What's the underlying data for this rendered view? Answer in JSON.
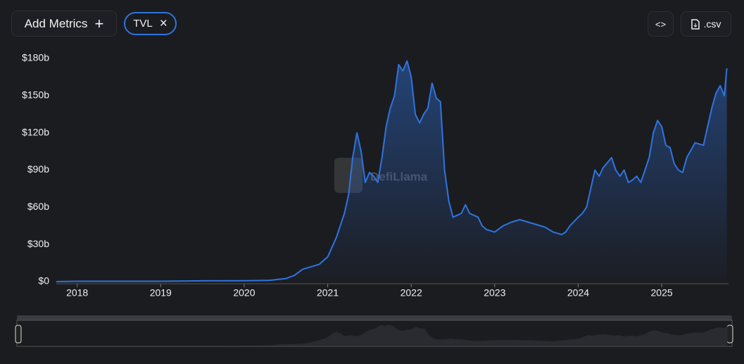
{
  "toolbar": {
    "add_metrics": "Add Metrics",
    "add_icon": "+",
    "remove_icon": "×",
    "embed": "<>",
    "csv": ".csv"
  },
  "watermark": "DefiLlama",
  "chart_data": {
    "type": "area",
    "xlim": [
      2017.75,
      2025.8
    ],
    "xticks": [
      2018,
      2019,
      2020,
      2021,
      2022,
      2023,
      2024,
      2025
    ],
    "ylim": [
      0,
      180
    ],
    "yticks": [
      {
        "value": 0,
        "label": "$0"
      },
      {
        "value": 30,
        "label": "$30b"
      },
      {
        "value": 60,
        "label": "$60b"
      },
      {
        "value": 90,
        "label": "$90b"
      },
      {
        "value": 120,
        "label": "$120b"
      },
      {
        "value": 150,
        "label": "$150b"
      },
      {
        "value": 180,
        "label": "$180b"
      }
    ],
    "grid": false,
    "series": [
      {
        "name": "TVL",
        "color": "#2f74e0",
        "x": [
          2017.75,
          2018,
          2019,
          2019.5,
          2020,
          2020.3,
          2020.5,
          2020.6,
          2020.7,
          2020.8,
          2020.9,
          2021.0,
          2021.1,
          2021.15,
          2021.2,
          2021.25,
          2021.3,
          2021.35,
          2021.4,
          2021.45,
          2021.5,
          2021.55,
          2021.6,
          2021.65,
          2021.7,
          2021.75,
          2021.8,
          2021.85,
          2021.9,
          2021.95,
          2022.0,
          2022.05,
          2022.1,
          2022.15,
          2022.2,
          2022.25,
          2022.3,
          2022.35,
          2022.4,
          2022.45,
          2022.5,
          2022.6,
          2022.65,
          2022.7,
          2022.8,
          2022.85,
          2022.9,
          2023.0,
          2023.1,
          2023.2,
          2023.3,
          2023.4,
          2023.5,
          2023.6,
          2023.7,
          2023.8,
          2023.85,
          2023.9,
          2024.0,
          2024.05,
          2024.1,
          2024.15,
          2024.2,
          2024.25,
          2024.3,
          2024.4,
          2024.45,
          2024.5,
          2024.55,
          2024.6,
          2024.65,
          2024.7,
          2024.75,
          2024.8,
          2024.85,
          2024.9,
          2024.95,
          2025.0,
          2025.05,
          2025.1,
          2025.15,
          2025.2,
          2025.25,
          2025.3,
          2025.4,
          2025.5,
          2025.55,
          2025.6,
          2025.65,
          2025.7,
          2025.75,
          2025.78
        ],
        "values": [
          0,
          0.3,
          0.3,
          0.6,
          0.7,
          1,
          2.5,
          5,
          10,
          12,
          14,
          20,
          35,
          45,
          55,
          70,
          100,
          120,
          105,
          80,
          88,
          85,
          80,
          100,
          125,
          140,
          150,
          175,
          170,
          178,
          165,
          135,
          128,
          135,
          140,
          160,
          148,
          145,
          90,
          65,
          52,
          55,
          62,
          55,
          52,
          45,
          42,
          40,
          45,
          48,
          50,
          48,
          46,
          44,
          40,
          38,
          40,
          45,
          52,
          55,
          60,
          75,
          90,
          85,
          92,
          100,
          90,
          85,
          90,
          80,
          82,
          85,
          80,
          90,
          100,
          120,
          130,
          125,
          110,
          108,
          95,
          90,
          88,
          100,
          112,
          110,
          125,
          140,
          152,
          158,
          150,
          172
        ]
      }
    ]
  }
}
